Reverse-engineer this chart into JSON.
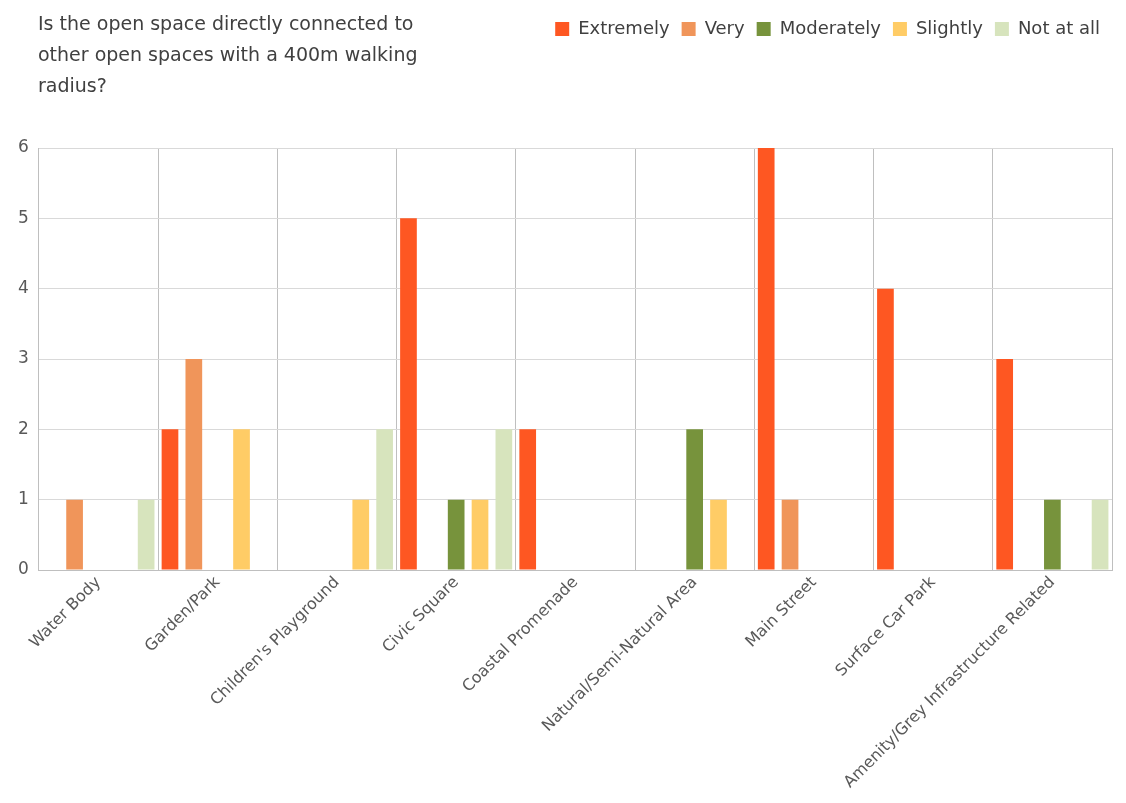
{
  "chart_data": {
    "type": "bar",
    "title": "Is the open space directly connected to other open spaces with a 400m walking radius?",
    "categories": [
      "Water Body",
      "Garden/Park",
      "Children's Playground",
      "Civic Square",
      "Coastal Promenade",
      "Natural/Semi-Natural Area",
      "Main Street",
      "Surface Car Park",
      "Amenity/Grey Infrastructure Related"
    ],
    "series": [
      {
        "name": "Extremely",
        "color": "#fe5722",
        "values": [
          0,
          2,
          0,
          5,
          2,
          0,
          6,
          4,
          3
        ]
      },
      {
        "name": "Very",
        "color": "#f0955a",
        "values": [
          1,
          3,
          0,
          0,
          0,
          0,
          1,
          0,
          0
        ]
      },
      {
        "name": "Moderately",
        "color": "#77933c",
        "values": [
          0,
          0,
          0,
          1,
          0,
          2,
          0,
          0,
          1
        ]
      },
      {
        "name": "Slightly",
        "color": "#ffcc66",
        "values": [
          0,
          2,
          1,
          1,
          0,
          1,
          0,
          0,
          0
        ]
      },
      {
        "name": "Not at all",
        "color": "#d7e4bd",
        "values": [
          1,
          0,
          2,
          2,
          0,
          0,
          0,
          0,
          1
        ]
      }
    ],
    "ylim": [
      0,
      6
    ],
    "yticks": [
      0,
      1,
      2,
      3,
      4,
      5,
      6
    ],
    "grid": true,
    "legend": "top right"
  }
}
